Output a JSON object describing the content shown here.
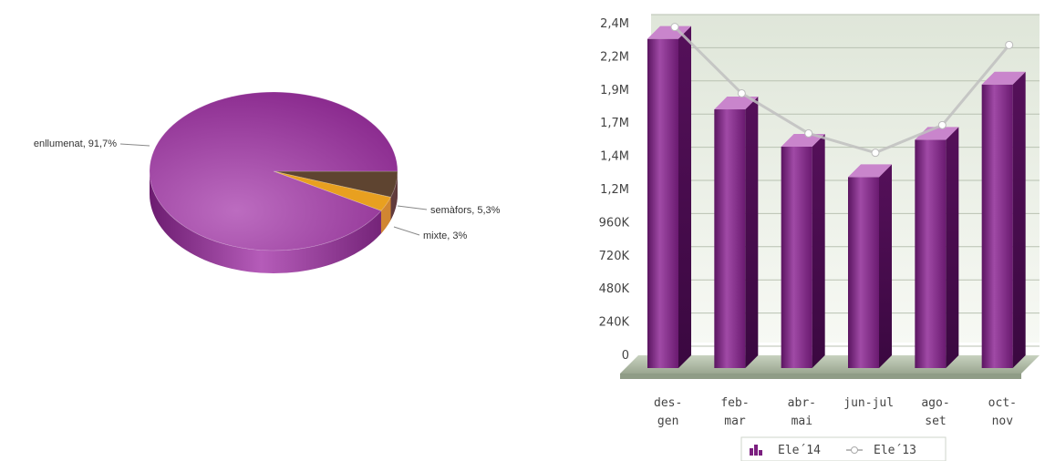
{
  "chart_data": [
    {
      "type": "pie",
      "title": "",
      "slices": [
        {
          "label": "enllumenat",
          "percent_text": "91,7%",
          "value": 91.7,
          "color": "#8e2a92"
        },
        {
          "label": "semàfors",
          "percent_text": "5,3%",
          "value": 5.3,
          "color": "#5e4430"
        },
        {
          "label": "mixte",
          "percent_text": "3%",
          "value": 3.0,
          "color": "#e8a020"
        }
      ]
    },
    {
      "type": "bar",
      "title": "",
      "xlabel": "",
      "ylabel": "",
      "categories": [
        {
          "line1": "des-",
          "line2": "gen"
        },
        {
          "line1": "feb-",
          "line2": "mar"
        },
        {
          "line1": "abr-",
          "line2": "mai"
        },
        {
          "line1": "jun-jul",
          "line2": ""
        },
        {
          "line1": "ago-",
          "line2": "set"
        },
        {
          "line1": "oct-",
          "line2": "nov"
        }
      ],
      "ylim": [
        0,
        2400000
      ],
      "yticks": [
        {
          "value": 0,
          "label": "0"
        },
        {
          "value": 240000,
          "label": "240K"
        },
        {
          "value": 480000,
          "label": "480K"
        },
        {
          "value": 720000,
          "label": "720K"
        },
        {
          "value": 960000,
          "label": "960K"
        },
        {
          "value": 1200000,
          "label": "1,2M"
        },
        {
          "value": 1440000,
          "label": "1,4M"
        },
        {
          "value": 1680000,
          "label": "1,7M"
        },
        {
          "value": 1920000,
          "label": "1,9M"
        },
        {
          "value": 2160000,
          "label": "2,2M"
        },
        {
          "value": 2400000,
          "label": "2,4M"
        }
      ],
      "series": [
        {
          "name": "Ele´14",
          "kind": "bar",
          "color": "#7b1f7f",
          "values": [
            2290000,
            1780000,
            1510000,
            1290000,
            1560000,
            1960000
          ]
        },
        {
          "name": "Ele´13",
          "kind": "line",
          "color": "#c0c0c0",
          "values": [
            2310000,
            1830000,
            1540000,
            1400000,
            1600000,
            2180000
          ]
        }
      ],
      "legend": "bottom",
      "grid": true
    }
  ]
}
